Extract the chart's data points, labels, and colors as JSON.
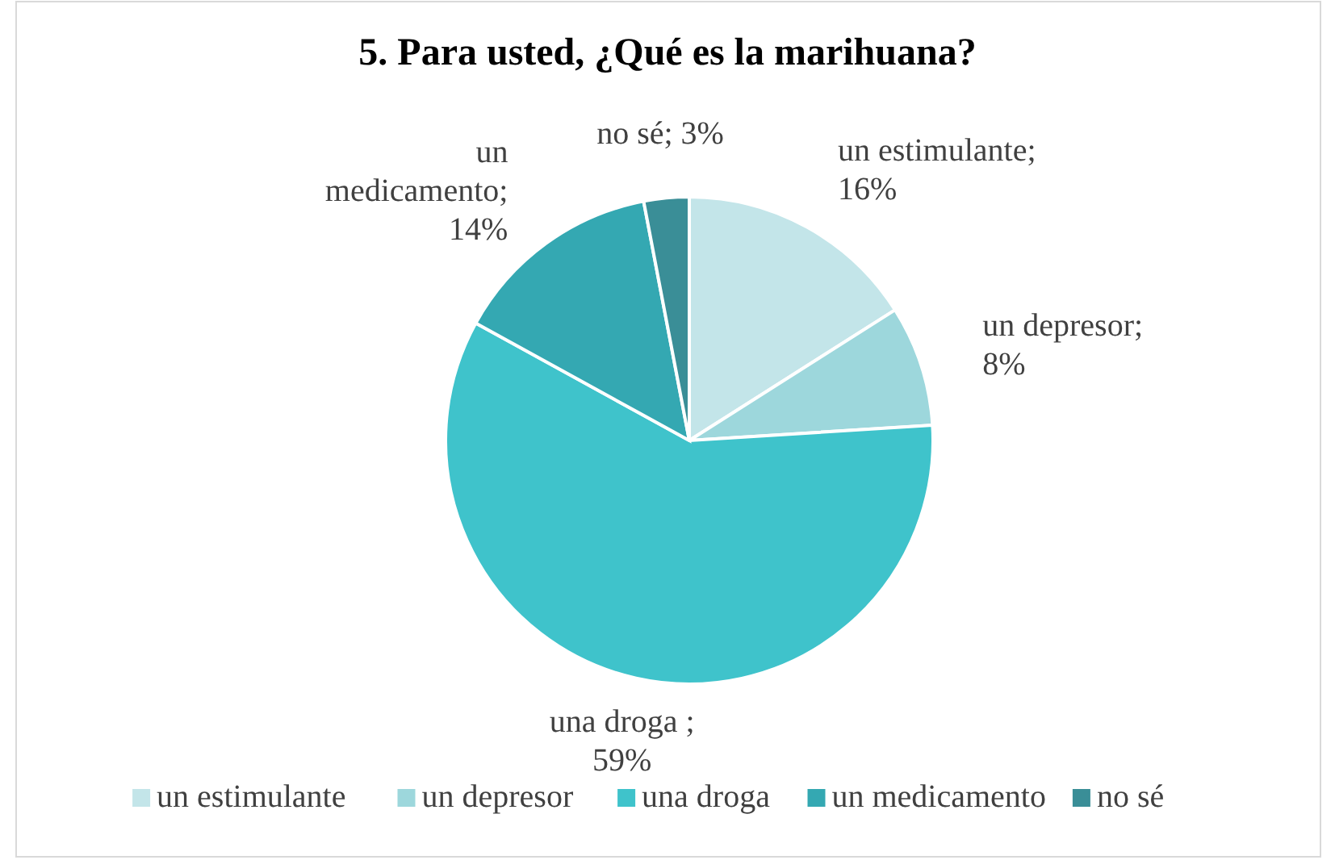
{
  "chart_data": {
    "type": "pie",
    "title": "5. Para usted, ¿Qué es la marihuana?",
    "categories": [
      "un estimulante",
      "un depresor",
      "una droga",
      "un medicamento",
      "no sé"
    ],
    "values": [
      16,
      8,
      59,
      14,
      3
    ],
    "colors": [
      "#c3e5e9",
      "#9dd7dc",
      "#3fc3cb",
      "#34a8b2",
      "#3a8e97"
    ],
    "value_labels": [
      "un estimulante;\n16%",
      "un depresor;\n8%",
      "una droga ;\n59%",
      "un\nmedicamento;\n14%",
      "no sé; 3%"
    ],
    "legend": "bottom"
  }
}
